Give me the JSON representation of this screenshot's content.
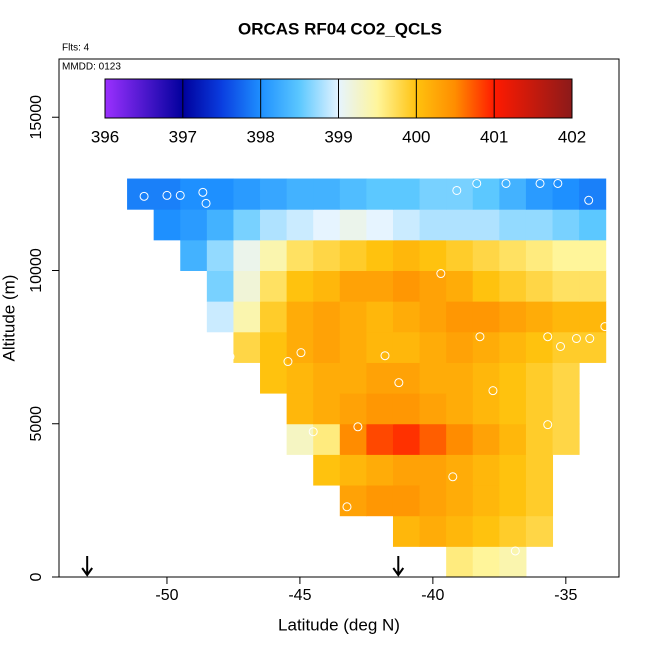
{
  "chart_data": {
    "type": "heatmap",
    "title": "ORCAS RF04 CO2_QCLS",
    "flights_label": "Flts: 4",
    "date_label": "MMDD: 0123",
    "x_label": "Latitude (deg N)",
    "y_label": "Altitude (m)",
    "xlim": [
      -54.06,
      -33.0
    ],
    "ylim": [
      0,
      16900
    ],
    "xticks": [
      -50,
      -45,
      -40,
      -35
    ],
    "yticks": [
      0,
      5000,
      10000,
      15000
    ],
    "lat": [
      -51,
      -50,
      -49,
      -48,
      -47,
      -46,
      -45,
      -44,
      -43,
      -42,
      -41,
      -40,
      -39,
      -38,
      -37,
      -36,
      -35,
      -34
    ],
    "alt": [
      500,
      1500,
      2500,
      3500,
      4500,
      5500,
      6500,
      7500,
      8500,
      9500,
      10500,
      11500,
      12500
    ],
    "z": [
      [
        null,
        null,
        null,
        null,
        null,
        null,
        null,
        null,
        null,
        null,
        null,
        null,
        399.6,
        399.5,
        399.4,
        null,
        null,
        null
      ],
      [
        null,
        null,
        null,
        null,
        null,
        null,
        null,
        null,
        null,
        null,
        400.1,
        400.2,
        400.1,
        400,
        399.9,
        399.8,
        null,
        null
      ],
      [
        null,
        null,
        null,
        null,
        null,
        null,
        null,
        null,
        400.3,
        400.4,
        400.4,
        400.3,
        400.2,
        400.1,
        400,
        399.9,
        null,
        null
      ],
      [
        null,
        null,
        null,
        null,
        null,
        null,
        null,
        400,
        400.1,
        400.2,
        400.3,
        400.3,
        400.2,
        400.1,
        400,
        399.9,
        null,
        null
      ],
      [
        null,
        null,
        null,
        null,
        null,
        null,
        399.3,
        399.6,
        400.5,
        400.8,
        400.9,
        400.7,
        400.5,
        400.3,
        400.1,
        399.9,
        399.8,
        null
      ],
      [
        null,
        null,
        null,
        null,
        null,
        null,
        400.1,
        400.2,
        400.3,
        400.4,
        400.4,
        400.3,
        400.2,
        400.1,
        400,
        399.9,
        399.8,
        null
      ],
      [
        null,
        null,
        null,
        null,
        null,
        400,
        400.1,
        400.2,
        400.2,
        400.3,
        400.3,
        400.2,
        400.2,
        400.1,
        400,
        399.9,
        399.8,
        null
      ],
      [
        null,
        null,
        null,
        null,
        399.8,
        400,
        400.2,
        400.3,
        400.2,
        400.1,
        400.1,
        400.2,
        400.3,
        400.2,
        400.1,
        400,
        399.9,
        399.9
      ],
      [
        null,
        null,
        null,
        398.9,
        399.4,
        399.9,
        400.2,
        400.3,
        400.2,
        400.1,
        400.2,
        400.3,
        400.4,
        400.4,
        400.3,
        400.2,
        400.1,
        400.1
      ],
      [
        null,
        null,
        null,
        398.6,
        399.2,
        399.7,
        400,
        400.1,
        400.3,
        400.3,
        400.4,
        400.3,
        400.2,
        400,
        399.9,
        399.8,
        399.7,
        399.7
      ],
      [
        null,
        null,
        398.3,
        398.7,
        399.1,
        399.4,
        399.7,
        399.8,
        399.9,
        400,
        400.1,
        400,
        399.9,
        399.8,
        399.7,
        399.6,
        399.5,
        399.5
      ],
      [
        null,
        398.0,
        398.1,
        398.3,
        398.6,
        398.8,
        398.9,
        399,
        399.1,
        399,
        398.9,
        398.8,
        398.8,
        398.8,
        398.7,
        398.7,
        398.6,
        398.5
      ],
      [
        397.9,
        397.9,
        398,
        398,
        398.1,
        398.2,
        398.3,
        398.3,
        398.4,
        398.5,
        398.5,
        398.6,
        398.6,
        398.5,
        398.3,
        398.1,
        398,
        397.9
      ]
    ],
    "samples": {
      "x": [
        -50.86,
        -50,
        -49.5,
        -48.65,
        -48.53,
        -39.1,
        -38.35,
        -37.25,
        -35.97,
        -35.3,
        -34.14,
        -39.7,
        -38.23,
        -35.68,
        -35.2,
        -34.6,
        -34.1,
        -33.53,
        -47.63,
        -45.45,
        -44.96,
        -41.8,
        -41.28,
        -37.74,
        -35.68,
        -42.82,
        -44.5,
        -39.25,
        -43.23,
        -44.1,
        -39.7,
        -36.9
      ],
      "y": [
        12420,
        12450,
        12450,
        12550,
        12190,
        12610,
        12840,
        12840,
        12840,
        12840,
        12290,
        9900,
        7840,
        7840,
        7520,
        7780,
        7780,
        8170,
        7190,
        7030,
        7320,
        7220,
        6340,
        6080,
        4970,
        4900,
        4740,
        3270,
        2290,
        2160,
        690,
        850
      ],
      "color": "#ffffff"
    },
    "arrows": [
      -53.0,
      -41.3
    ],
    "colorbar": {
      "lim": [
        396,
        402
      ],
      "ticks": [
        396,
        397,
        398,
        399,
        400,
        401,
        402
      ],
      "scale": [
        [
          396,
          "#9b30ff"
        ],
        [
          397,
          "#00009c"
        ],
        [
          397.5,
          "#0a3ee0"
        ],
        [
          398,
          "#1e90ff"
        ],
        [
          398.5,
          "#5cc8ff"
        ],
        [
          399,
          "#e6f4ff"
        ],
        [
          399.5,
          "#fff59a"
        ],
        [
          400,
          "#ffc20e"
        ],
        [
          400.5,
          "#ff8c00"
        ],
        [
          401,
          "#ff1a00"
        ],
        [
          402,
          "#8b1a1a"
        ]
      ]
    }
  }
}
